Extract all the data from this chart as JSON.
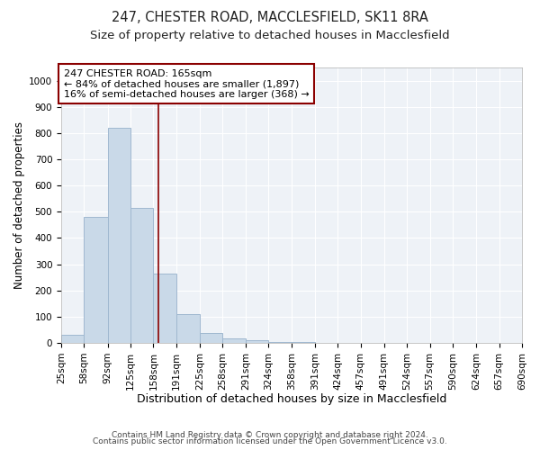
{
  "title1": "247, CHESTER ROAD, MACCLESFIELD, SK11 8RA",
  "title2": "Size of property relative to detached houses in Macclesfield",
  "xlabel": "Distribution of detached houses by size in Macclesfield",
  "ylabel": "Number of detached properties",
  "bin_edges": [
    25,
    58,
    92,
    125,
    158,
    191,
    225,
    258,
    291,
    324,
    358,
    391,
    424,
    457,
    491,
    524,
    557,
    590,
    624,
    657,
    690
  ],
  "bar_heights": [
    30,
    480,
    820,
    515,
    265,
    110,
    38,
    18,
    10,
    5,
    2,
    1,
    0,
    0,
    0,
    0,
    0,
    0,
    0,
    0
  ],
  "bar_color": "#c9d9e8",
  "bar_edge_color": "#a0b8d0",
  "bar_linewidth": 0.7,
  "vline_x": 165,
  "vline_color": "#8b0000",
  "vline_linewidth": 1.2,
  "annotation_line1": "247 CHESTER ROAD: 165sqm",
  "annotation_line2": "← 84% of detached houses are smaller (1,897)",
  "annotation_line3": "16% of semi-detached houses are larger (368) →",
  "box_edge_color": "#8b0000",
  "ylim": [
    0,
    1050
  ],
  "yticks": [
    0,
    100,
    200,
    300,
    400,
    500,
    600,
    700,
    800,
    900,
    1000
  ],
  "background_color": "#eef2f7",
  "grid_color": "#ffffff",
  "footer1": "Contains HM Land Registry data © Crown copyright and database right 2024.",
  "footer2": "Contains public sector information licensed under the Open Government Licence v3.0.",
  "title1_fontsize": 10.5,
  "title2_fontsize": 9.5,
  "xlabel_fontsize": 9,
  "ylabel_fontsize": 8.5,
  "tick_fontsize": 7.5,
  "annotation_fontsize": 8,
  "footer_fontsize": 6.5
}
